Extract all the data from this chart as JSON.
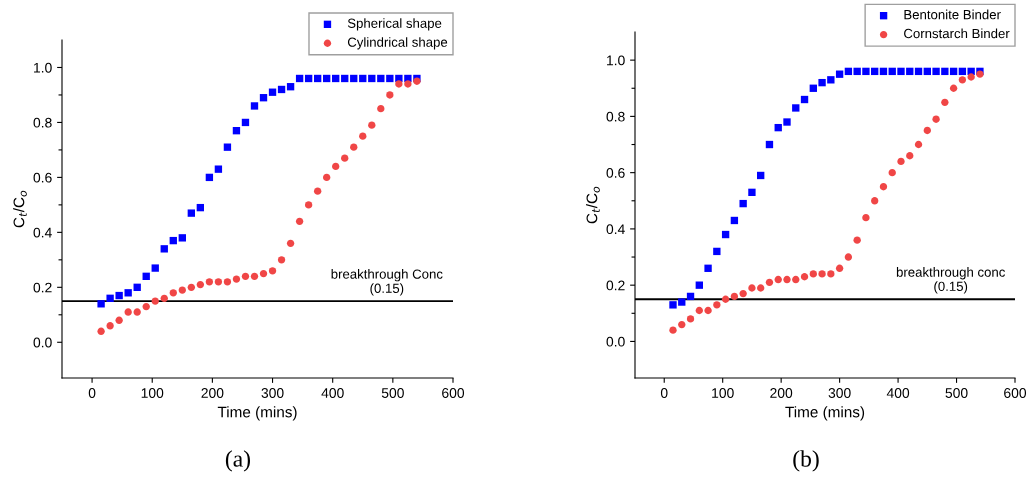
{
  "chart_data": [
    {
      "type": "scatter",
      "xlabel": "Time (mins)",
      "ylabel": "C$_{t}$/C$_{o}$",
      "xlim": [
        -50,
        600
      ],
      "ylim": [
        -0.13,
        1.1
      ],
      "xticks": [
        0,
        100,
        200,
        300,
        400,
        500,
        600
      ],
      "yticks": [
        {
          "value": 0,
          "label": "0.0"
        },
        {
          "value": 0.1,
          "label": null
        },
        {
          "value": 0.2,
          "label": "0.2"
        },
        {
          "value": 0.3,
          "label": null
        },
        {
          "value": 0.4,
          "label": "0.4"
        },
        {
          "value": 0.5,
          "label": null
        },
        {
          "value": 0.6,
          "label": "0.6"
        },
        {
          "value": 0.7,
          "label": null
        },
        {
          "value": 0.8,
          "label": "0.8"
        },
        {
          "value": 0.9,
          "label": null
        },
        {
          "value": 1.0,
          "label": "1.0"
        }
      ],
      "x": [
        15,
        30,
        45,
        60,
        75,
        90,
        105,
        120,
        135,
        150,
        165,
        180,
        195,
        210,
        225,
        240,
        255,
        270,
        285,
        300,
        315,
        330,
        345,
        360,
        375,
        390,
        405,
        420,
        435,
        450,
        465,
        480,
        495,
        510,
        525,
        540
      ],
      "series": [
        {
          "name": "Spherical shape",
          "color": "#0000ff",
          "marker": "square",
          "values": [
            0.14,
            0.16,
            0.17,
            0.18,
            0.2,
            0.24,
            0.27,
            0.34,
            0.37,
            0.38,
            0.47,
            0.49,
            0.6,
            0.63,
            0.71,
            0.77,
            0.8,
            0.86,
            0.89,
            0.91,
            0.92,
            0.93,
            0.96,
            0.96,
            0.96,
            0.96,
            0.96,
            0.96,
            0.96,
            0.96,
            0.96,
            0.96,
            0.96,
            0.96,
            0.96,
            0.96
          ]
        },
        {
          "name": "Cylindrical shape",
          "color": "#f04646",
          "marker": "circle",
          "values": [
            0.04,
            0.06,
            0.08,
            0.11,
            0.11,
            0.13,
            0.15,
            0.16,
            0.18,
            0.19,
            0.2,
            0.21,
            0.22,
            0.22,
            0.22,
            0.23,
            0.24,
            0.24,
            0.25,
            0.26,
            0.3,
            0.36,
            0.44,
            0.5,
            0.55,
            0.6,
            0.64,
            0.67,
            0.71,
            0.75,
            0.79,
            0.85,
            0.9,
            0.94,
            0.94,
            0.95
          ]
        }
      ],
      "ref_lines": [
        {
          "axis": "y",
          "value": 0.15,
          "label": "breakthrough Conc\n(0.15)",
          "color": "#000000"
        }
      ],
      "legend": "top right",
      "grid": false,
      "annotations": [
        "(a)"
      ]
    },
    {
      "type": "scatter",
      "xlabel": "Time (mins)",
      "ylabel": "C$_{t}$/C$_{o}$",
      "xlim": [
        -50,
        600
      ],
      "ylim": [
        -0.13,
        1.1
      ],
      "xticks": [
        0,
        100,
        200,
        300,
        400,
        500,
        600
      ],
      "yticks": [
        {
          "value": 0,
          "label": "0.0"
        },
        {
          "value": 0.1,
          "label": null
        },
        {
          "value": 0.2,
          "label": "0.2"
        },
        {
          "value": 0.3,
          "label": null
        },
        {
          "value": 0.4,
          "label": "0.4"
        },
        {
          "value": 0.5,
          "label": null
        },
        {
          "value": 0.6,
          "label": "0.6"
        },
        {
          "value": 0.7,
          "label": null
        },
        {
          "value": 0.8,
          "label": "0.8"
        },
        {
          "value": 0.9,
          "label": null
        },
        {
          "value": 1.0,
          "label": "1.0"
        }
      ],
      "x": [
        15,
        30,
        45,
        60,
        75,
        90,
        105,
        120,
        135,
        150,
        165,
        180,
        195,
        210,
        225,
        240,
        255,
        270,
        285,
        300,
        315,
        330,
        345,
        360,
        375,
        390,
        405,
        420,
        435,
        450,
        465,
        480,
        495,
        510,
        525,
        540
      ],
      "series": [
        {
          "name": "Bentonite Binder",
          "color": "#0000ff",
          "marker": "square",
          "values": [
            0.13,
            0.14,
            0.16,
            0.2,
            0.26,
            0.32,
            0.38,
            0.43,
            0.49,
            0.53,
            0.59,
            0.7,
            0.76,
            0.78,
            0.83,
            0.86,
            0.9,
            0.92,
            0.93,
            0.95,
            0.96,
            0.96,
            0.96,
            0.96,
            0.96,
            0.96,
            0.96,
            0.96,
            0.96,
            0.96,
            0.96,
            0.96,
            0.96,
            0.96,
            0.96,
            0.96
          ]
        },
        {
          "name": "Cornstarch Binder",
          "color": "#f04646",
          "marker": "circle",
          "values": [
            0.04,
            0.06,
            0.08,
            0.11,
            0.11,
            0.13,
            0.15,
            0.16,
            0.17,
            0.19,
            0.19,
            0.21,
            0.22,
            0.22,
            0.22,
            0.23,
            0.24,
            0.24,
            0.24,
            0.26,
            0.3,
            0.36,
            0.44,
            0.5,
            0.55,
            0.6,
            0.64,
            0.66,
            0.7,
            0.75,
            0.79,
            0.85,
            0.9,
            0.93,
            0.94,
            0.95
          ]
        }
      ],
      "ref_lines": [
        {
          "axis": "y",
          "value": 0.15,
          "label": "breakthrough conc\n(0.15)",
          "color": "#000000"
        }
      ],
      "legend": "top right",
      "grid": false,
      "annotations": [
        "(b)"
      ]
    }
  ]
}
